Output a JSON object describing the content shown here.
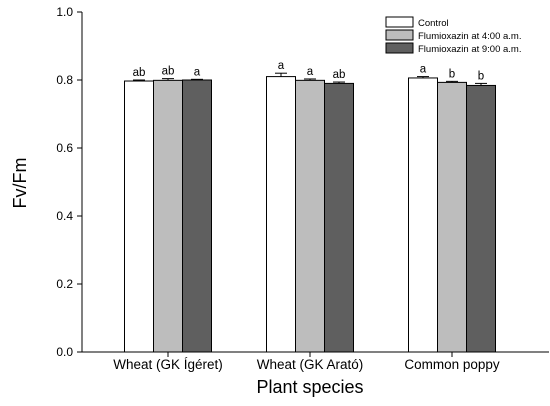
{
  "chart_data": {
    "type": "bar",
    "title": "",
    "xlabel": "Plant species",
    "ylabel": "Fv/Fm",
    "ylim": [
      0,
      1.0
    ],
    "yticks": [
      "0.0",
      "0.2",
      "0.4",
      "0.6",
      "0.8",
      "1.0"
    ],
    "categories": [
      "Wheat (GK Ígéret)",
      "Wheat (GK Arató)",
      "Common poppy"
    ],
    "grid": false,
    "legend_position": "top-right",
    "series": [
      {
        "name": "Control",
        "color": "#ffffff",
        "values": [
          0.797,
          0.81,
          0.806
        ],
        "errors": [
          0.003,
          0.01,
          0.004
        ],
        "labels": [
          "ab",
          "a",
          "a"
        ]
      },
      {
        "name": "Flumioxazin at 4:00 a.m.",
        "color": "#bdbdbd",
        "values": [
          0.799,
          0.799,
          0.793
        ],
        "errors": [
          0.005,
          0.004,
          0.003
        ],
        "labels": [
          "ab",
          "a",
          "b"
        ]
      },
      {
        "name": "Flumioxazin at 9:00 a.m.",
        "color": "#5f5f5f",
        "values": [
          0.8,
          0.79,
          0.784
        ],
        "errors": [
          0.002,
          0.004,
          0.006
        ],
        "labels": [
          "a",
          "ab",
          "b"
        ]
      }
    ]
  }
}
